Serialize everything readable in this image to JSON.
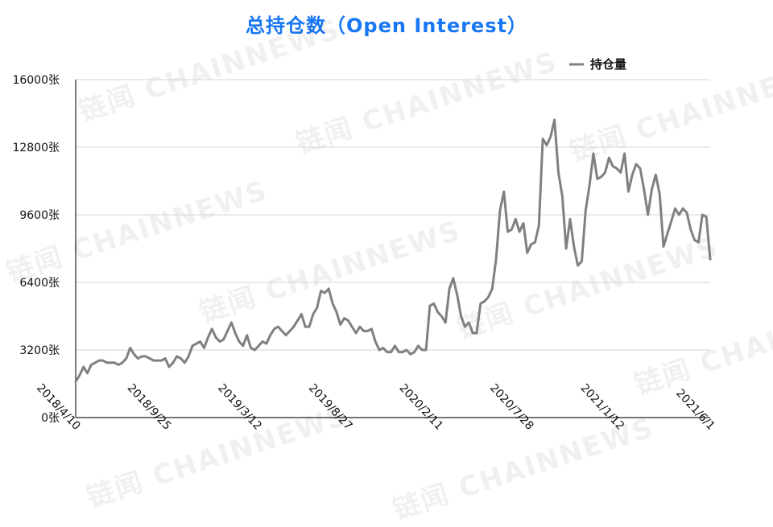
{
  "chart_data": {
    "type": "line",
    "title": "总持仓数（Open Interest）",
    "xlabel": "",
    "ylabel": "",
    "legend": {
      "position": "top-right"
    },
    "grid": true,
    "ylim": [
      0,
      16000
    ],
    "y_ticks": [
      "0张",
      "3200张",
      "6400张",
      "9600张",
      "12800张",
      "16000张"
    ],
    "x_ticks": [
      "2018/4/10",
      "2018/9/25",
      "2019/3/12",
      "2019/8/27",
      "2020/2/11",
      "2020/7/28",
      "2021/1/12",
      "2021/6/1"
    ],
    "series": [
      {
        "name": "持仓量",
        "color": "#808080",
        "values": [
          1700,
          2000,
          2400,
          2100,
          2500,
          2600,
          2700,
          2700,
          2600,
          2600,
          2600,
          2500,
          2600,
          2800,
          3300,
          3000,
          2800,
          2900,
          2900,
          2800,
          2700,
          2700,
          2700,
          2800,
          2400,
          2600,
          2900,
          2800,
          2600,
          2900,
          3400,
          3500,
          3600,
          3300,
          3800,
          4200,
          3800,
          3600,
          3700,
          4100,
          4500,
          4000,
          3600,
          3400,
          3900,
          3300,
          3200,
          3400,
          3600,
          3500,
          3900,
          4200,
          4300,
          4100,
          3900,
          4100,
          4300,
          4600,
          4900,
          4300,
          4300,
          4900,
          5200,
          6000,
          5900,
          6100,
          5400,
          5000,
          4400,
          4700,
          4600,
          4300,
          4000,
          4300,
          4100,
          4100,
          4200,
          3600,
          3200,
          3300,
          3100,
          3100,
          3400,
          3100,
          3100,
          3200,
          3000,
          3100,
          3400,
          3200,
          3200,
          5300,
          5400,
          5000,
          4800,
          4500,
          6100,
          6600,
          5800,
          4800,
          4300,
          4500,
          4000,
          4000,
          5400,
          5500,
          5700,
          6100,
          7500,
          9800,
          10700,
          8800,
          8900,
          9400,
          8800,
          9200,
          7800,
          8200,
          8300,
          9100,
          13200,
          12900,
          13300,
          14100,
          11600,
          10500,
          8000,
          9400,
          8100,
          7200,
          7400,
          9800,
          11000,
          12500,
          11300,
          11400,
          11600,
          12300,
          11900,
          11800,
          11600,
          12500,
          10700,
          11500,
          12000,
          11800,
          10800,
          9600,
          10800,
          11500,
          10600,
          8100,
          8700,
          9300,
          9900,
          9600,
          9900,
          9700,
          8900,
          8400,
          8300,
          9600,
          9500,
          7500
        ]
      }
    ]
  },
  "watermark": "链闻 CHAINNEWS"
}
